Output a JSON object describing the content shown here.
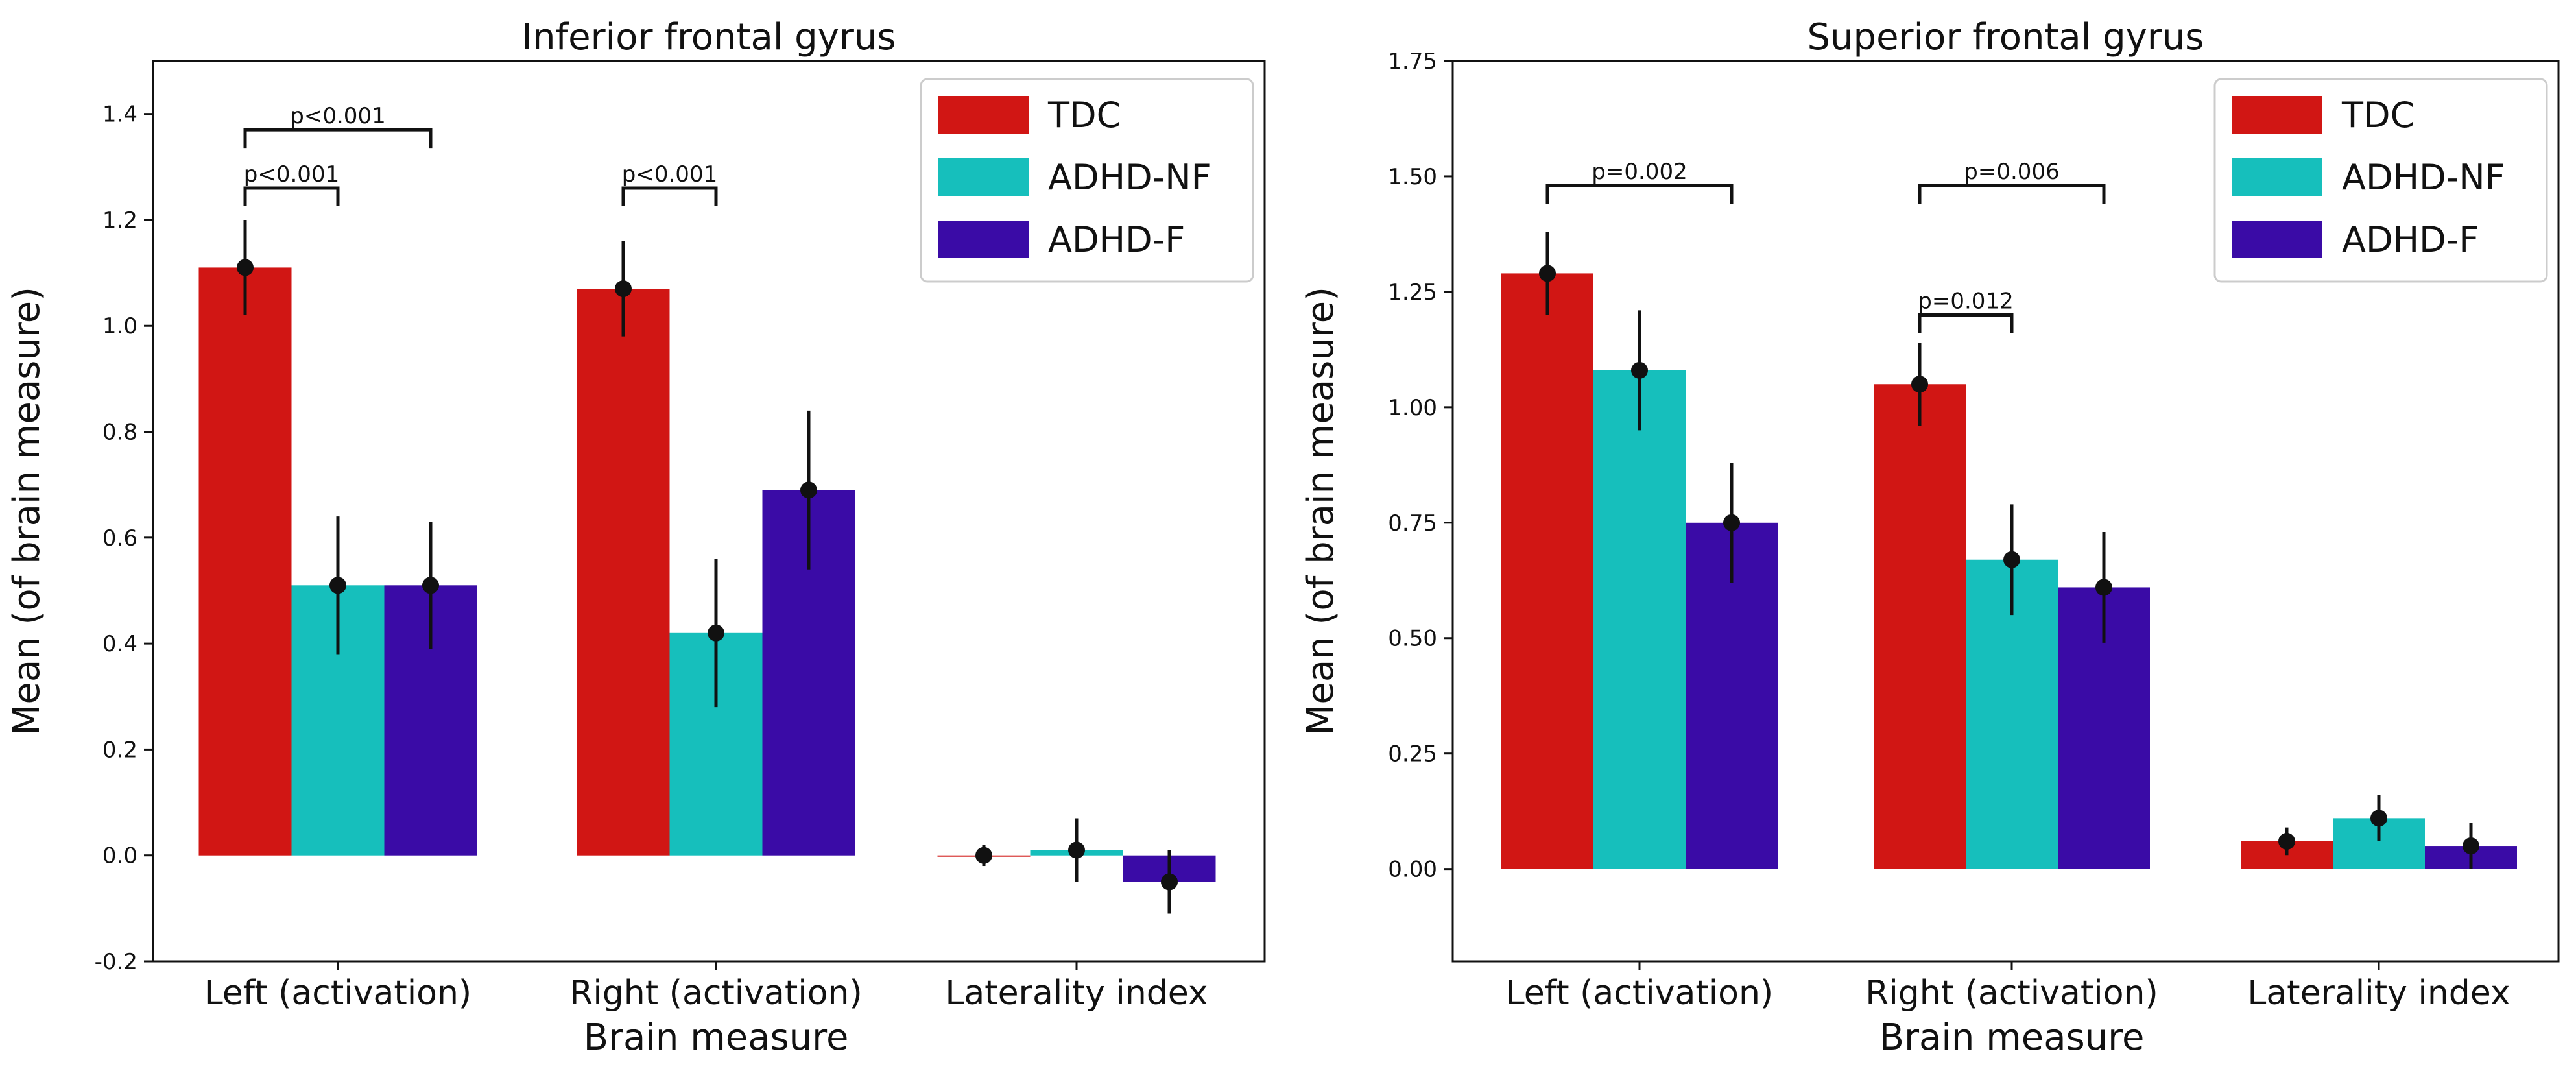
{
  "chart_data": [
    {
      "type": "bar",
      "title": "Inferior frontal gyrus",
      "xlabel": "Brain measure",
      "ylabel": "Mean (of brain measure)",
      "ylim": [
        -0.2,
        1.5
      ],
      "yticks": [
        -0.2,
        0.0,
        0.2,
        0.4,
        0.6,
        0.8,
        1.0,
        1.2,
        1.4
      ],
      "yticklabels": [
        "-0.2",
        "0.0",
        "0.2",
        "0.4",
        "0.6",
        "0.8",
        "1.0",
        "1.2",
        "1.4"
      ],
      "categories": [
        "Left (activation)",
        "Right (activation)",
        "Laterality index"
      ],
      "series": [
        {
          "name": "TDC",
          "color": "#d11614",
          "values": [
            1.11,
            1.07,
            0.0
          ],
          "points": [
            1.11,
            1.07,
            0.0
          ],
          "err": [
            0.09,
            0.09,
            0.02
          ]
        },
        {
          "name": "ADHD-NF",
          "color": "#16bfbc",
          "values": [
            0.51,
            0.42,
            0.01
          ],
          "points": [
            0.51,
            0.42,
            0.01
          ],
          "err": [
            0.13,
            0.14,
            0.06
          ]
        },
        {
          "name": "ADHD-F",
          "color": "#3a0ba6",
          "values": [
            0.51,
            0.69,
            -0.05
          ],
          "points": [
            0.51,
            0.69,
            -0.05
          ],
          "err": [
            0.12,
            0.15,
            0.06
          ]
        }
      ],
      "legend_position": "top-right",
      "annotations": [
        {
          "text": "p<0.001",
          "category": 0,
          "from_series": 0,
          "to_series": 2,
          "y": 1.37
        },
        {
          "text": "p<0.001",
          "category": 0,
          "from_series": 0,
          "to_series": 1,
          "y": 1.26
        },
        {
          "text": "p<0.001",
          "category": 1,
          "from_series": 0,
          "to_series": 1,
          "y": 1.26
        }
      ]
    },
    {
      "type": "bar",
      "title": "Superior frontal gyrus",
      "xlabel": "Brain measure",
      "ylabel": "Mean (of brain measure)",
      "ylim": [
        -0.2,
        1.75
      ],
      "yticks": [
        0.0,
        0.25,
        0.5,
        0.75,
        1.0,
        1.25,
        1.5,
        1.75
      ],
      "yticklabels": [
        "0.00",
        "0.25",
        "0.50",
        "0.75",
        "1.00",
        "1.25",
        "1.50",
        "1.75"
      ],
      "categories": [
        "Left (activation)",
        "Right (activation)",
        "Laterality index"
      ],
      "series": [
        {
          "name": "TDC",
          "color": "#d11614",
          "values": [
            1.29,
            1.05,
            0.06
          ],
          "points": [
            1.29,
            1.05,
            0.06
          ],
          "err": [
            0.09,
            0.09,
            0.03
          ]
        },
        {
          "name": "ADHD-NF",
          "color": "#16bfbc",
          "values": [
            1.08,
            0.67,
            0.11
          ],
          "points": [
            1.08,
            0.67,
            0.11
          ],
          "err": [
            0.13,
            0.12,
            0.05
          ]
        },
        {
          "name": "ADHD-F",
          "color": "#3a0ba6",
          "values": [
            0.75,
            0.61,
            0.05
          ],
          "points": [
            0.75,
            0.61,
            0.05
          ],
          "err": [
            0.13,
            0.12,
            0.05
          ]
        }
      ],
      "legend_position": "top-right",
      "annotations": [
        {
          "text": "p=0.002",
          "category": 0,
          "from_series": 0,
          "to_series": 2,
          "y": 1.48
        },
        {
          "text": "p=0.006",
          "category": 1,
          "from_series": 0,
          "to_series": 2,
          "y": 1.48
        },
        {
          "text": "p=0.012",
          "category": 1,
          "from_series": 0,
          "to_series": 1,
          "y": 1.2
        }
      ]
    }
  ]
}
